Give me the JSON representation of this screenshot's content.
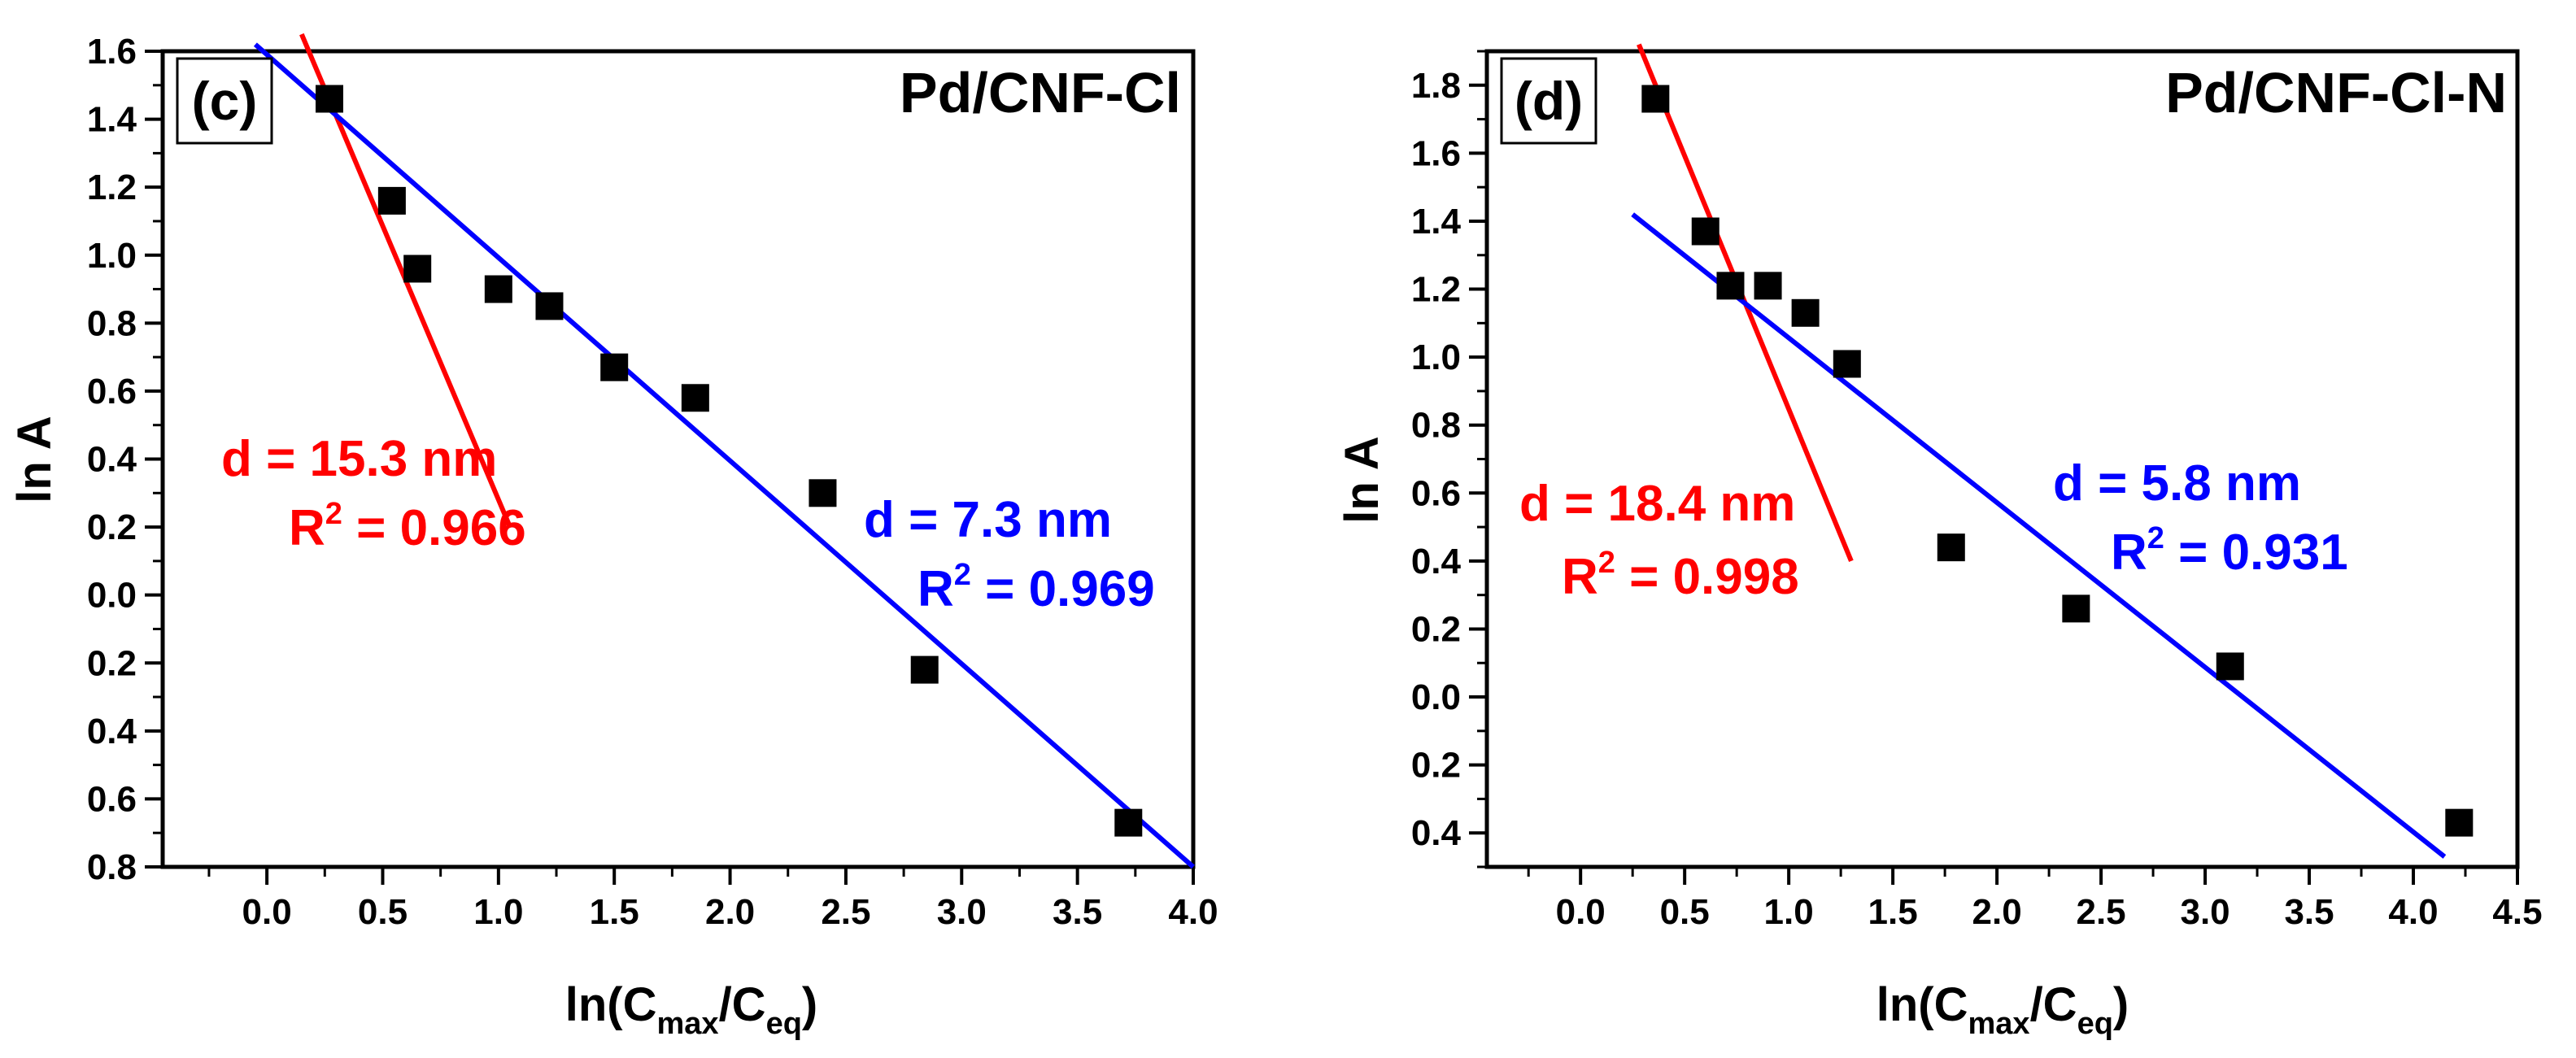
{
  "chart_data": [
    {
      "type": "scatter",
      "panel_label": "(c)",
      "title": "Pd/CNF-Cl",
      "xlabel": {
        "pre": "ln(C",
        "sub1": "max",
        "mid": "/C",
        "sub2": "eq",
        "post": ")"
      },
      "ylabel": "ln A",
      "xlim": [
        -0.45,
        4.0
      ],
      "ylim": [
        -0.8,
        1.6
      ],
      "xticks": [
        0.0,
        0.5,
        1.0,
        1.5,
        2.0,
        2.5,
        3.0,
        3.5,
        4.0
      ],
      "xtick_labels": [
        "0.0",
        "0.5",
        "1.0",
        "1.5",
        "2.0",
        "2.5",
        "3.0",
        "3.5",
        "4.0"
      ],
      "yticks": [
        -0.8,
        -0.6,
        -0.4,
        -0.2,
        0.0,
        0.2,
        0.4,
        0.6,
        0.8,
        1.0,
        1.2,
        1.4,
        1.6
      ],
      "ytick_labels": [
        "0.8",
        "0.6",
        "0.4",
        "0.2",
        "0.0",
        "0.2",
        "0.4",
        "0.6",
        "0.8",
        "1.0",
        "1.2",
        "1.4",
        "1.6"
      ],
      "points": [
        {
          "x": 0.27,
          "y": 1.46
        },
        {
          "x": 0.54,
          "y": 1.16
        },
        {
          "x": 0.65,
          "y": 0.96
        },
        {
          "x": 1.0,
          "y": 0.9
        },
        {
          "x": 1.22,
          "y": 0.85
        },
        {
          "x": 1.5,
          "y": 0.67
        },
        {
          "x": 1.85,
          "y": 0.58
        },
        {
          "x": 2.4,
          "y": 0.3
        },
        {
          "x": 2.84,
          "y": -0.22
        },
        {
          "x": 3.72,
          "y": -0.67
        }
      ],
      "fits": [
        {
          "name": "red-fit",
          "color": "#ff0000",
          "x": [
            0.15,
            1.05
          ],
          "y": [
            1.65,
            0.2
          ]
        },
        {
          "name": "blue-fit",
          "color": "#0000ff",
          "x": [
            -0.05,
            4.0
          ],
          "y": [
            1.62,
            -0.8
          ]
        }
      ],
      "annotations": [
        {
          "name": "red-d",
          "color": "#ff0000",
          "text": "d = 15.3 nm"
        },
        {
          "name": "red-r2",
          "color": "#ff0000",
          "base": "R",
          "sup": "2",
          "text": " = 0.966"
        },
        {
          "name": "blue-d",
          "color": "#0000ff",
          "text": "d = 7.3 nm"
        },
        {
          "name": "blue-r2",
          "color": "#0000ff",
          "base": "R",
          "sup": "2",
          "text": " = 0.969"
        }
      ]
    },
    {
      "type": "scatter",
      "panel_label": "(d)",
      "title": "Pd/CNF-Cl-N",
      "xlabel": {
        "pre": "ln(C",
        "sub1": "max",
        "mid": "/C",
        "sub2": "eq",
        "post": ")"
      },
      "ylabel": "ln A",
      "xlim": [
        -0.45,
        4.5
      ],
      "ylim": [
        -0.5,
        1.9
      ],
      "xticks": [
        0.0,
        0.5,
        1.0,
        1.5,
        2.0,
        2.5,
        3.0,
        3.5,
        4.0,
        4.5
      ],
      "xtick_labels": [
        "0.0",
        "0.5",
        "1.0",
        "1.5",
        "2.0",
        "2.5",
        "3.0",
        "3.5",
        "4.0",
        "4.5"
      ],
      "yticks": [
        -0.4,
        -0.2,
        0.0,
        0.2,
        0.4,
        0.6,
        0.8,
        1.0,
        1.2,
        1.4,
        1.6,
        1.8
      ],
      "ytick_labels": [
        "0.4",
        "0.2",
        "0.0",
        "0.2",
        "0.4",
        "0.6",
        "0.8",
        "1.0",
        "1.2",
        "1.4",
        "1.6",
        "1.8"
      ],
      "points": [
        {
          "x": 0.36,
          "y": 1.76
        },
        {
          "x": 0.6,
          "y": 1.37
        },
        {
          "x": 0.72,
          "y": 1.21
        },
        {
          "x": 0.9,
          "y": 1.21
        },
        {
          "x": 1.08,
          "y": 1.13
        },
        {
          "x": 1.28,
          "y": 0.98
        },
        {
          "x": 1.78,
          "y": 0.44
        },
        {
          "x": 2.38,
          "y": 0.26
        },
        {
          "x": 3.12,
          "y": 0.09
        },
        {
          "x": 4.22,
          "y": -0.37
        }
      ],
      "fits": [
        {
          "name": "red-fit",
          "color": "#ff0000",
          "x": [
            0.28,
            1.3
          ],
          "y": [
            1.92,
            0.4
          ]
        },
        {
          "name": "blue-fit",
          "color": "#0000ff",
          "x": [
            0.25,
            4.15
          ],
          "y": [
            1.42,
            -0.47
          ]
        }
      ],
      "annotations": [
        {
          "name": "red-d",
          "color": "#ff0000",
          "text": "d = 18.4 nm"
        },
        {
          "name": "red-r2",
          "color": "#ff0000",
          "base": "R",
          "sup": "2",
          "text": " = 0.998"
        },
        {
          "name": "blue-d",
          "color": "#0000ff",
          "text": "d = 5.8 nm"
        },
        {
          "name": "blue-r2",
          "color": "#0000ff",
          "base": "R",
          "sup": "2",
          "text": " = 0.931"
        }
      ]
    }
  ]
}
